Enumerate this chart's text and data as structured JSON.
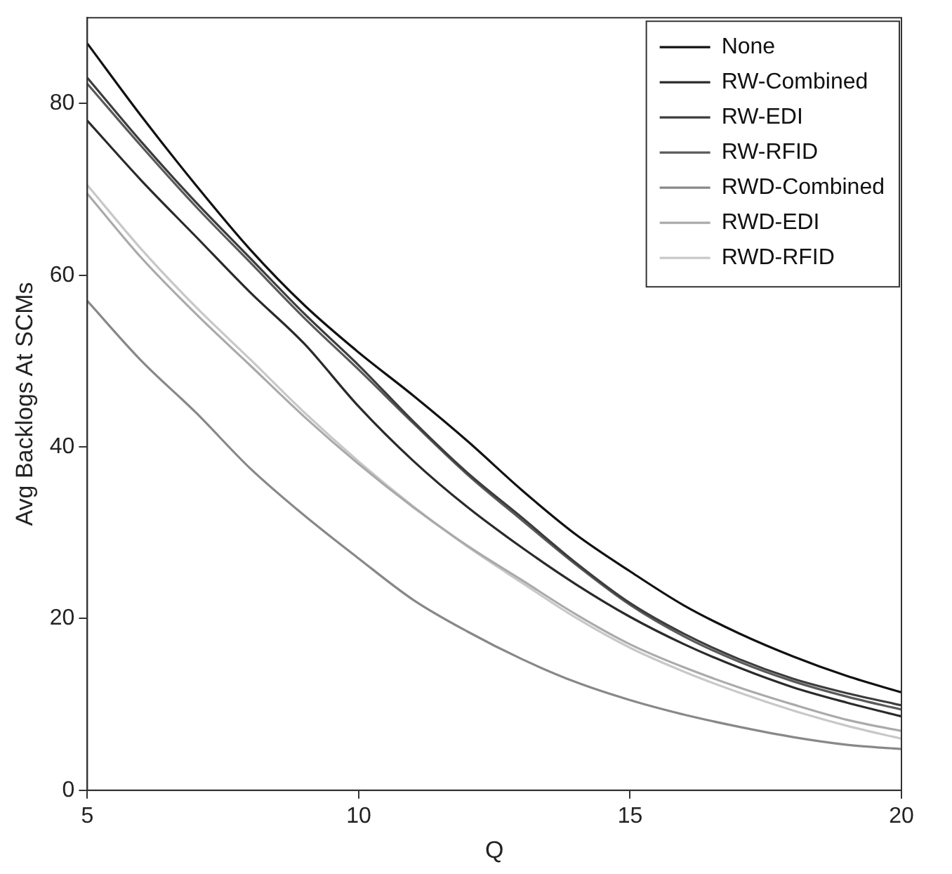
{
  "chart_data": {
    "type": "line",
    "xlabel": "Q",
    "ylabel": "Avg Backlogs At SCMs",
    "x": [
      5,
      6,
      7,
      8,
      9,
      10,
      11,
      12,
      13,
      14,
      15,
      16,
      17,
      18,
      19,
      20
    ],
    "xlim": [
      5,
      20
    ],
    "xticks": [
      5,
      10,
      15,
      20
    ],
    "ylim": [
      0,
      90
    ],
    "yticks": [
      0,
      20,
      40,
      60,
      80
    ],
    "grid": false,
    "legend": "top right",
    "marker": "none",
    "line_style": "solid",
    "series": [
      {
        "name": "None",
        "color": "#111111",
        "values": [
          87,
          78.5,
          70.5,
          63,
          56.5,
          51,
          46,
          40.7,
          35,
          29.8,
          25.5,
          21.5,
          18.3,
          15.6,
          13.3,
          11.4
        ]
      },
      {
        "name": "RW-Combined",
        "color": "#2a2a2a",
        "values": [
          78,
          71,
          64.5,
          58,
          52,
          44.7,
          38.4,
          33,
          28.3,
          24,
          20.2,
          17,
          14.3,
          12,
          10.2,
          8.6
        ]
      },
      {
        "name": "RW-EDI",
        "color": "#3c3c3c",
        "values": [
          83,
          75.5,
          68.5,
          62,
          55.5,
          49.5,
          43,
          37,
          31.8,
          26.5,
          21.8,
          18.2,
          15.3,
          13,
          11.3,
          9.9
        ]
      },
      {
        "name": "RW-RFID",
        "color": "#5a5a5a",
        "values": [
          82.3,
          75,
          68,
          61.5,
          55,
          49,
          42.8,
          36.8,
          31.5,
          26.3,
          21.6,
          17.9,
          15,
          12.7,
          10.9,
          9.4
        ]
      },
      {
        "name": "RWD-Combined",
        "color": "#888888",
        "values": [
          57,
          50,
          44,
          37.5,
          32,
          27,
          22.2,
          18.5,
          15.3,
          12.6,
          10.5,
          8.8,
          7.4,
          6.2,
          5.3,
          4.8
        ]
      },
      {
        "name": "RWD-EDI",
        "color": "#aaaaaa",
        "values": [
          69.5,
          62,
          55.5,
          49.5,
          43.5,
          38,
          33,
          28.5,
          24.5,
          20.5,
          17,
          14.3,
          12,
          10,
          8.2,
          6.9
        ]
      },
      {
        "name": "RWD-RFID",
        "color": "#c8c8c8",
        "values": [
          70.5,
          63,
          56.3,
          50.2,
          44,
          38.3,
          33.1,
          28.4,
          24.2,
          20.1,
          16.6,
          13.8,
          11.4,
          9.3,
          7.5,
          6.0
        ]
      }
    ]
  }
}
